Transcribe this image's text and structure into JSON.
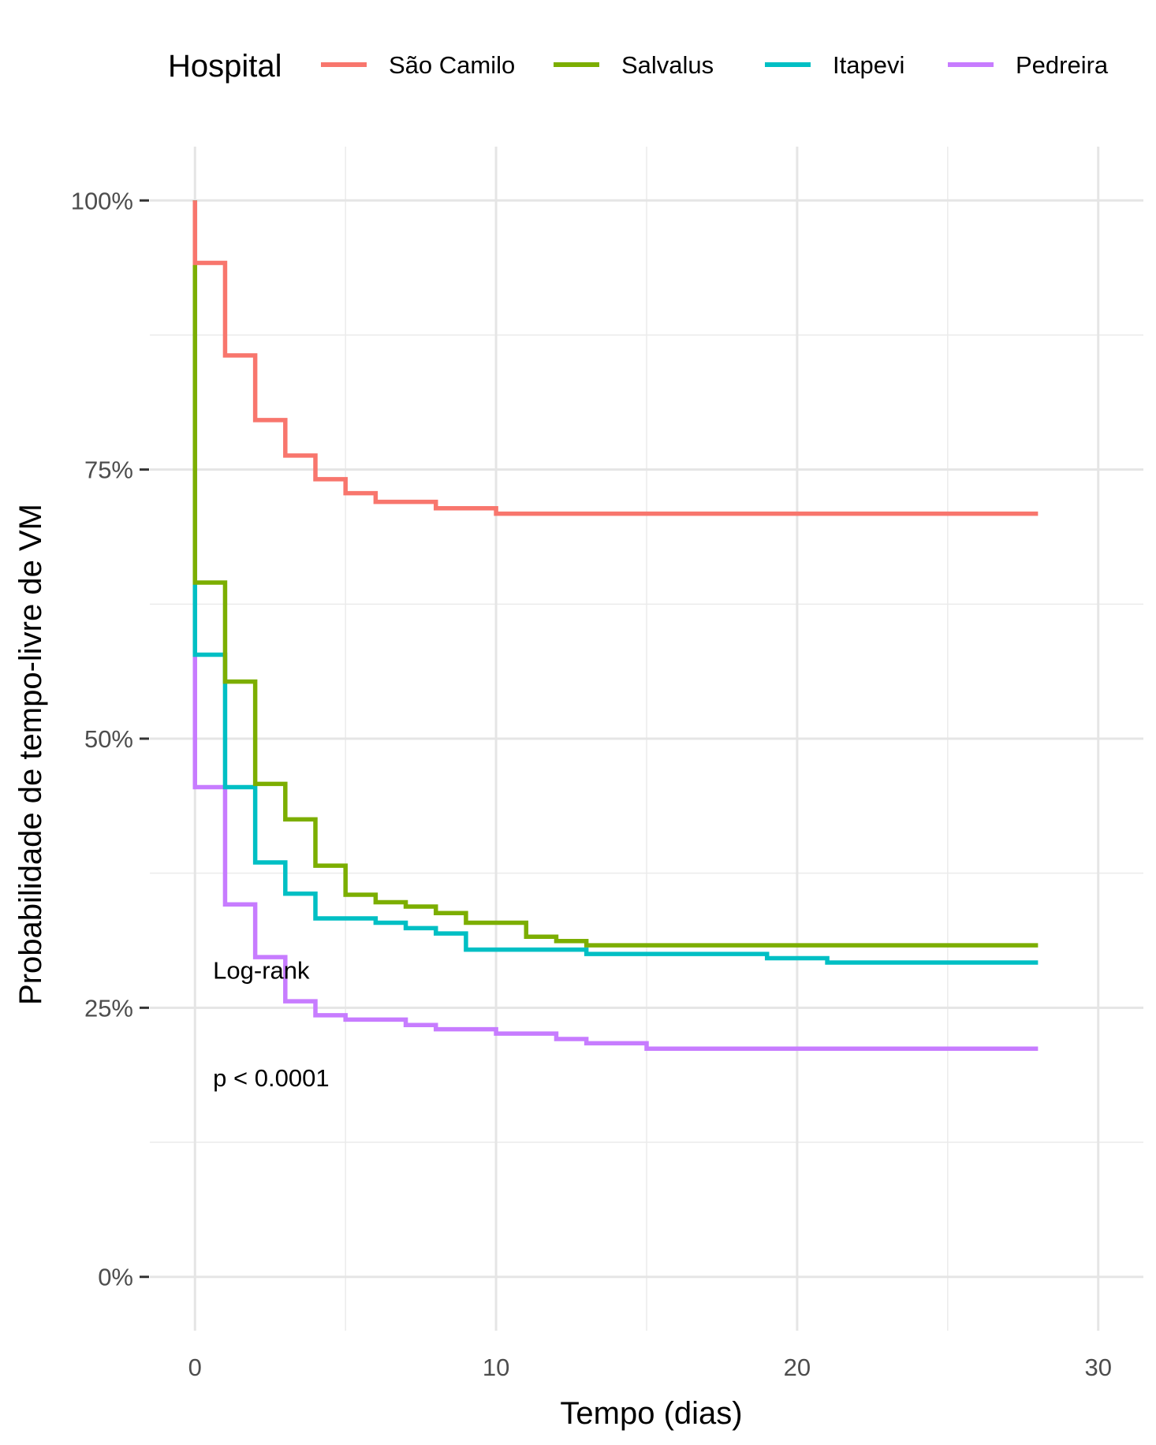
{
  "chart_data": {
    "type": "line",
    "step": true,
    "xlabel": "Tempo (dias)",
    "ylabel": "Probabilidade de tempo-livre de VM",
    "xlim": [
      -1.5,
      31.5
    ],
    "ylim": [
      -0.05,
      1.05
    ],
    "x_ticks": [
      0,
      10,
      20,
      30
    ],
    "x_tick_labels": [
      "0",
      "10",
      "20",
      "30"
    ],
    "y_ticks": [
      0,
      0.25,
      0.5,
      0.75,
      1.0
    ],
    "y_tick_labels": [
      "0%",
      "25%",
      "50%",
      "75%",
      "100%"
    ],
    "grid": true,
    "legend": {
      "title": "Hospital",
      "position": "top"
    },
    "annotations": [
      {
        "text": "Log-rank",
        "x": 0.6,
        "y": 0.285
      },
      {
        "text": "p < 0.0001",
        "x": 0.6,
        "y": 0.185
      }
    ],
    "series": [
      {
        "name": "São Camilo",
        "color": "#F8766D",
        "x": [
          0,
          1,
          2,
          3,
          4,
          5,
          6,
          8,
          10,
          28
        ],
        "y": [
          0.942,
          0.856,
          0.796,
          0.763,
          0.741,
          0.728,
          0.72,
          0.714,
          0.709,
          0.709
        ]
      },
      {
        "name": "Salvalus",
        "color": "#7CAE00",
        "x": [
          0,
          1,
          2,
          3,
          4,
          5,
          6,
          7,
          8,
          9,
          11,
          12,
          13,
          28
        ],
        "y": [
          0.645,
          0.553,
          0.458,
          0.425,
          0.382,
          0.355,
          0.348,
          0.344,
          0.338,
          0.329,
          0.316,
          0.312,
          0.308,
          0.308
        ]
      },
      {
        "name": "Itapevi",
        "color": "#00BFC4",
        "x": [
          0,
          1,
          2,
          3,
          4,
          6,
          7,
          8,
          9,
          13,
          19,
          21,
          28
        ],
        "y": [
          0.578,
          0.455,
          0.385,
          0.356,
          0.333,
          0.329,
          0.324,
          0.319,
          0.304,
          0.3,
          0.296,
          0.292,
          0.292
        ]
      },
      {
        "name": "Pedreira",
        "color": "#C77CFF",
        "x": [
          0,
          1,
          2,
          3,
          4,
          5,
          7,
          8,
          10,
          12,
          13,
          15,
          28
        ],
        "y": [
          0.455,
          0.346,
          0.297,
          0.256,
          0.243,
          0.239,
          0.234,
          0.23,
          0.226,
          0.221,
          0.217,
          0.212,
          0.212
        ]
      }
    ]
  }
}
